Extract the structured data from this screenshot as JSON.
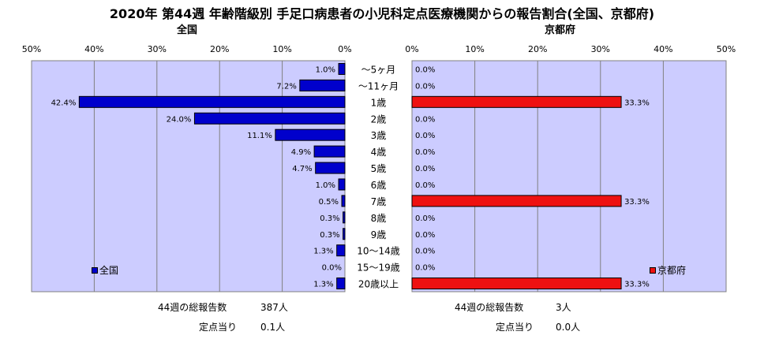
{
  "title": "2020年 第44週 年齢階級別 手足口病患者の小児科定点医療機関からの報告割合(全国、京都府)",
  "chart_data": {
    "type": "bar",
    "categories": [
      "～5ヶ月",
      "～11ヶ月",
      "1歳",
      "2歳",
      "3歳",
      "4歳",
      "5歳",
      "6歳",
      "7歳",
      "8歳",
      "9歳",
      "10～14歳",
      "15～19歳",
      "20歳以上"
    ],
    "xlim": [
      0,
      50
    ],
    "ticks": [
      0,
      10,
      20,
      30,
      40,
      50
    ],
    "tick_labels": [
      "0%",
      "10%",
      "20%",
      "30%",
      "40%",
      "50%"
    ],
    "grid": true,
    "series": [
      {
        "name": "全国",
        "subtitle": "全国",
        "color": "#0000cc",
        "values": [
          1.0,
          7.2,
          42.4,
          24.0,
          11.1,
          4.9,
          4.7,
          1.0,
          0.5,
          0.3,
          0.3,
          1.3,
          0.0,
          1.3
        ],
        "labels": [
          "1.0%",
          "7.2%",
          "42.4%",
          "24.0%",
          "11.1%",
          "4.9%",
          "4.7%",
          "1.0%",
          "0.5%",
          "0.3%",
          "0.3%",
          "1.3%",
          "0.0%",
          "1.3%"
        ]
      },
      {
        "name": "京都府",
        "subtitle": "京都府",
        "color": "#ee1111",
        "values": [
          0.0,
          0.0,
          33.3,
          0.0,
          0.0,
          0.0,
          0.0,
          0.0,
          33.3,
          0.0,
          0.0,
          0.0,
          0.0,
          33.3
        ],
        "labels": [
          "0.0%",
          "0.0%",
          "33.3%",
          "0.0%",
          "0.0%",
          "0.0%",
          "0.0%",
          "0.0%",
          "33.3%",
          "0.0%",
          "0.0%",
          "0.0%",
          "0.0%",
          "33.3%"
        ]
      }
    ],
    "plot_background": "#ccccff"
  },
  "footer": {
    "national": {
      "total_label": "44週の総報告数",
      "total_value": "387人",
      "per_site_label": "定点当り",
      "per_site_value": "0.1人"
    },
    "kyoto": {
      "total_label": "44週の総報告数",
      "total_value": "3人",
      "per_site_label": "定点当り",
      "per_site_value": "0.0人"
    }
  }
}
